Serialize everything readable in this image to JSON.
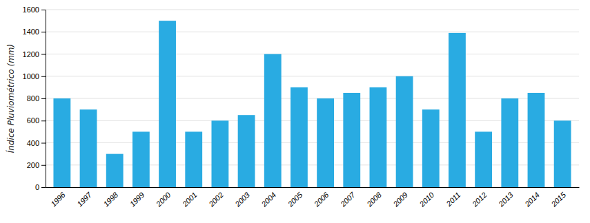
{
  "chart_data": {
    "type": "bar",
    "ylabel": "Índice Pluviométrico (mm)",
    "categories": [
      "1996",
      "1997",
      "1998",
      "1999",
      "2000",
      "2001",
      "2002",
      "2003",
      "2004",
      "2005",
      "2006",
      "2007",
      "2008",
      "2009",
      "2010",
      "2011",
      "2012",
      "2013",
      "2014",
      "2015"
    ],
    "values": [
      800,
      700,
      300,
      500,
      1500,
      500,
      600,
      650,
      1200,
      900,
      800,
      850,
      900,
      1000,
      700,
      1390,
      500,
      800,
      850,
      600
    ],
    "color": "#29ABE2",
    "ylim": [
      0,
      1600
    ],
    "yticks": [
      0,
      200,
      400,
      600,
      800,
      1000,
      1200,
      1400,
      1600
    ],
    "grid": true
  }
}
